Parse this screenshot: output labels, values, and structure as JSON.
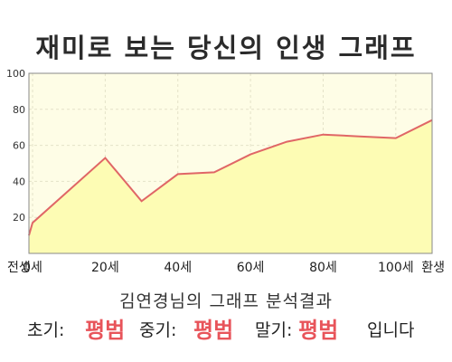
{
  "title": "재미로 보는 당신의 인생 그래프",
  "subtitle": "김연경님의 그래프 분석결과",
  "results": {
    "early_label": "초기:",
    "early_value": "평범",
    "middle_label": "중기:",
    "middle_value": "평범",
    "late_label": "말기:",
    "late_value": "평범",
    "suffix": "입니다"
  },
  "colors": {
    "plot_background": "#fefde6",
    "area_fill": "#fdfcb4",
    "line": "#e06666"
  },
  "chart_data": {
    "type": "area",
    "categories": [
      "전생",
      "0세",
      "20세",
      "40세",
      "60세",
      "80세",
      "100세",
      "환생"
    ],
    "x": [
      -1,
      0,
      20,
      30,
      40,
      50,
      60,
      70,
      80,
      90,
      100,
      110
    ],
    "values": [
      10,
      17,
      53,
      29,
      44,
      45,
      55,
      62,
      66,
      65,
      64,
      74
    ],
    "y_ticks": [
      "20",
      "40",
      "60",
      "80",
      "100"
    ],
    "ylim": [
      0,
      100
    ],
    "grid": true
  }
}
